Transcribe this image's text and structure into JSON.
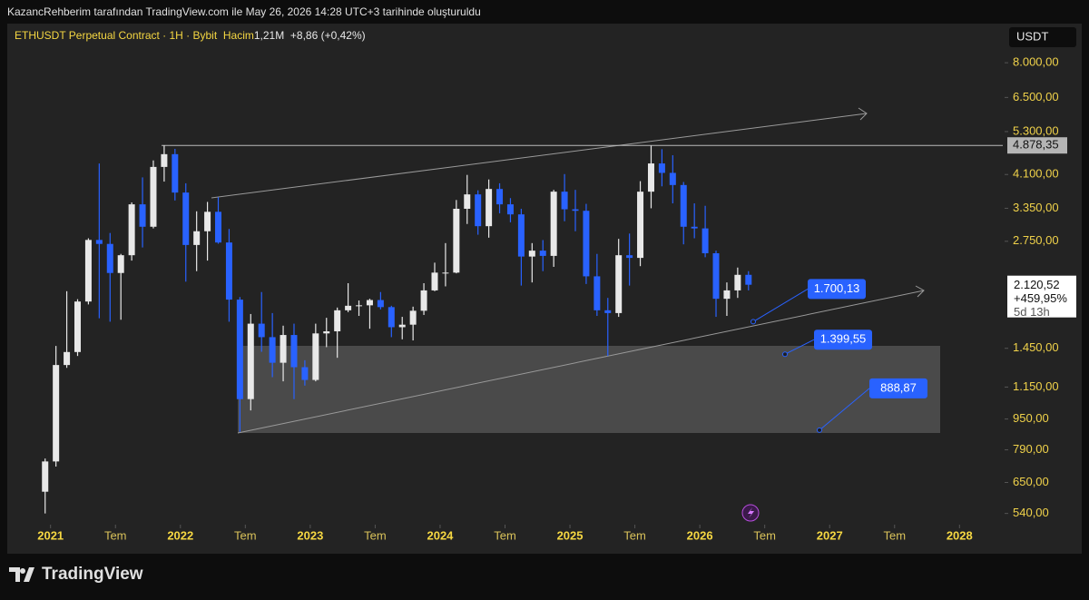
{
  "header": {
    "text": "KazancRehberim tarafından TradingView.com ile May 26, 2026 14:28 UTC+3 tarihinde oluşturuldu"
  },
  "chart_data": {
    "type": "candlestick",
    "symbol": "ETHUSDT Perpetual Contract · 1H · Bybit",
    "volume_label": "Hacim",
    "volume": "1,21M",
    "change": "+8,86 (+0,42%)",
    "currency": "USDT",
    "x": [
      "2020-12",
      "2021-01",
      "2021-02",
      "2021-03",
      "2021-04",
      "2021-05",
      "2021-06",
      "2021-07",
      "2021-08",
      "2021-09",
      "2021-10",
      "2021-11",
      "2021-12",
      "2022-01",
      "2022-02",
      "2022-03",
      "2022-04",
      "2022-05",
      "2022-06",
      "2022-07",
      "2022-08",
      "2022-09",
      "2022-10",
      "2022-11",
      "2022-12",
      "2023-01",
      "2023-02",
      "2023-03",
      "2023-04",
      "2023-05",
      "2023-06",
      "2023-07",
      "2023-08",
      "2023-09",
      "2023-10",
      "2023-11",
      "2023-12",
      "2024-01",
      "2024-02",
      "2024-03",
      "2024-04",
      "2024-05",
      "2024-06",
      "2024-07",
      "2024-08",
      "2024-09",
      "2024-10",
      "2024-11",
      "2024-12",
      "2025-01",
      "2025-02",
      "2025-03",
      "2025-04",
      "2025-05",
      "2025-06",
      "2025-07",
      "2025-08",
      "2025-09",
      "2025-10",
      "2025-11",
      "2025-12",
      "2026-01",
      "2026-02",
      "2026-03",
      "2026-04",
      "2026-05"
    ],
    "open": [
      615,
      737,
      1312,
      1418,
      1918,
      2772,
      2707,
      2275,
      2530,
      3430,
      3000,
      4290,
      4630,
      3680,
      2690,
      2920,
      3280,
      2730,
      1940,
      1070,
      1680,
      1550,
      1330,
      1570,
      1295,
      1200,
      1585,
      1605,
      1820,
      1870,
      1875,
      1935,
      1855,
      1645,
      1670,
      1815,
      2050,
      2280,
      2280,
      3340,
      3640,
      3010,
      3760,
      3430,
      3230,
      2510,
      2600,
      2520,
      3700,
      3330,
      3300,
      2230,
      1820,
      1790,
      2530,
      2490,
      3700,
      4380,
      4140,
      3850,
      3000,
      2970,
      2560,
      1950,
      2050,
      2250
    ],
    "high": [
      750,
      1470,
      2040,
      1945,
      2800,
      4380,
      2890,
      2550,
      3470,
      4030,
      4460,
      4878,
      4780,
      3890,
      3290,
      3480,
      3580,
      2960,
      1970,
      1780,
      2030,
      1790,
      1660,
      1680,
      1350,
      1680,
      1740,
      1850,
      2140,
      1930,
      1950,
      2030,
      1870,
      1750,
      1860,
      2140,
      2420,
      2720,
      3520,
      4090,
      3730,
      3980,
      3890,
      3560,
      3340,
      2720,
      2770,
      3740,
      4110,
      3740,
      3440,
      2550,
      1960,
      2790,
      2880,
      3940,
      4870,
      4770,
      4600,
      3920,
      3450,
      3400,
      2600,
      2150,
      2350,
      2300
    ],
    "low": [
      540,
      715,
      1290,
      1385,
      1885,
      1735,
      1700,
      1720,
      2450,
      2650,
      2970,
      3930,
      3510,
      2160,
      2300,
      2450,
      2710,
      1700,
      880,
      1000,
      1420,
      1220,
      1190,
      1070,
      1160,
      1190,
      1460,
      1370,
      1800,
      1760,
      1630,
      1830,
      1550,
      1530,
      1520,
      1770,
      2040,
      2100,
      2270,
      3050,
      2860,
      2810,
      3250,
      3080,
      2110,
      2150,
      2300,
      2360,
      3100,
      2920,
      2130,
      1760,
      1385,
      1750,
      2110,
      2370,
      3350,
      3820,
      3450,
      2700,
      2800,
      2500,
      1750,
      1760,
      1960,
      2050
    ],
    "close": [
      737,
      1312,
      1418,
      1918,
      2772,
      2707,
      2275,
      2530,
      3430,
      3000,
      4290,
      4630,
      3680,
      2690,
      2920,
      3280,
      2730,
      1940,
      1070,
      1680,
      1550,
      1330,
      1570,
      1295,
      1200,
      1585,
      1605,
      1820,
      1870,
      1875,
      1935,
      1855,
      1645,
      1670,
      1815,
      2050,
      2280,
      2280,
      3340,
      3640,
      3010,
      3760,
      3430,
      3230,
      2510,
      2600,
      2520,
      3700,
      3330,
      3300,
      2230,
      1820,
      1790,
      2530,
      2490,
      3700,
      4380,
      4140,
      3850,
      3000,
      2970,
      2560,
      1950,
      2050,
      2250,
      2120.52
    ],
    "up_color": "#e8e8e8",
    "down_color": "#2962ff",
    "log_scale": true,
    "ylim": [
      505,
      10000
    ],
    "yticks": [
      {
        "value": 540,
        "label": "540,00"
      },
      {
        "value": 650,
        "label": "650,00"
      },
      {
        "value": 790,
        "label": "790,00"
      },
      {
        "value": 950,
        "label": "950,00"
      },
      {
        "value": 1150,
        "label": "1.150,00"
      },
      {
        "value": 1450,
        "label": "1.450,00"
      },
      {
        "value": 2750,
        "label": "2.750,00"
      },
      {
        "value": 3350,
        "label": "3.350,00"
      },
      {
        "value": 4100,
        "label": "4.100,00"
      },
      {
        "value": 5300,
        "label": "5.300,00"
      },
      {
        "value": 6500,
        "label": "6.500,00"
      },
      {
        "value": 8000,
        "label": "8.000,00"
      }
    ],
    "xlim": [
      "2020-09",
      "2028-05"
    ],
    "xticks": [
      {
        "value": "2021-01",
        "label": "2021"
      },
      {
        "value": "2021-07",
        "label": "Tem"
      },
      {
        "value": "2022-01",
        "label": "2022"
      },
      {
        "value": "2022-07",
        "label": "Tem"
      },
      {
        "value": "2023-01",
        "label": "2023"
      },
      {
        "value": "2023-07",
        "label": "Tem"
      },
      {
        "value": "2024-01",
        "label": "2024"
      },
      {
        "value": "2024-07",
        "label": "Tem"
      },
      {
        "value": "2025-01",
        "label": "2025"
      },
      {
        "value": "2025-07",
        "label": "Tem"
      },
      {
        "value": "2026-01",
        "label": "2026"
      },
      {
        "value": "2026-07",
        "label": "Tem"
      },
      {
        "value": "2027-01",
        "label": "2027"
      },
      {
        "value": "2027-07",
        "label": "Tem"
      },
      {
        "value": "2028-01",
        "label": "2028"
      }
    ],
    "level_label": {
      "value": 4878.35,
      "label": "4.878,35"
    },
    "last_price": {
      "value": 2120.52,
      "label": "2.120,52"
    },
    "last_change": "+459,95%",
    "countdown": "5d 13h",
    "annotations": [
      {
        "value": 1700.13,
        "label": "1.700,13"
      },
      {
        "value": 1399.55,
        "label": "1.399,55"
      },
      {
        "value": 888.87,
        "label": "888,87"
      }
    ]
  },
  "footer": {
    "brand": "TradingView"
  }
}
